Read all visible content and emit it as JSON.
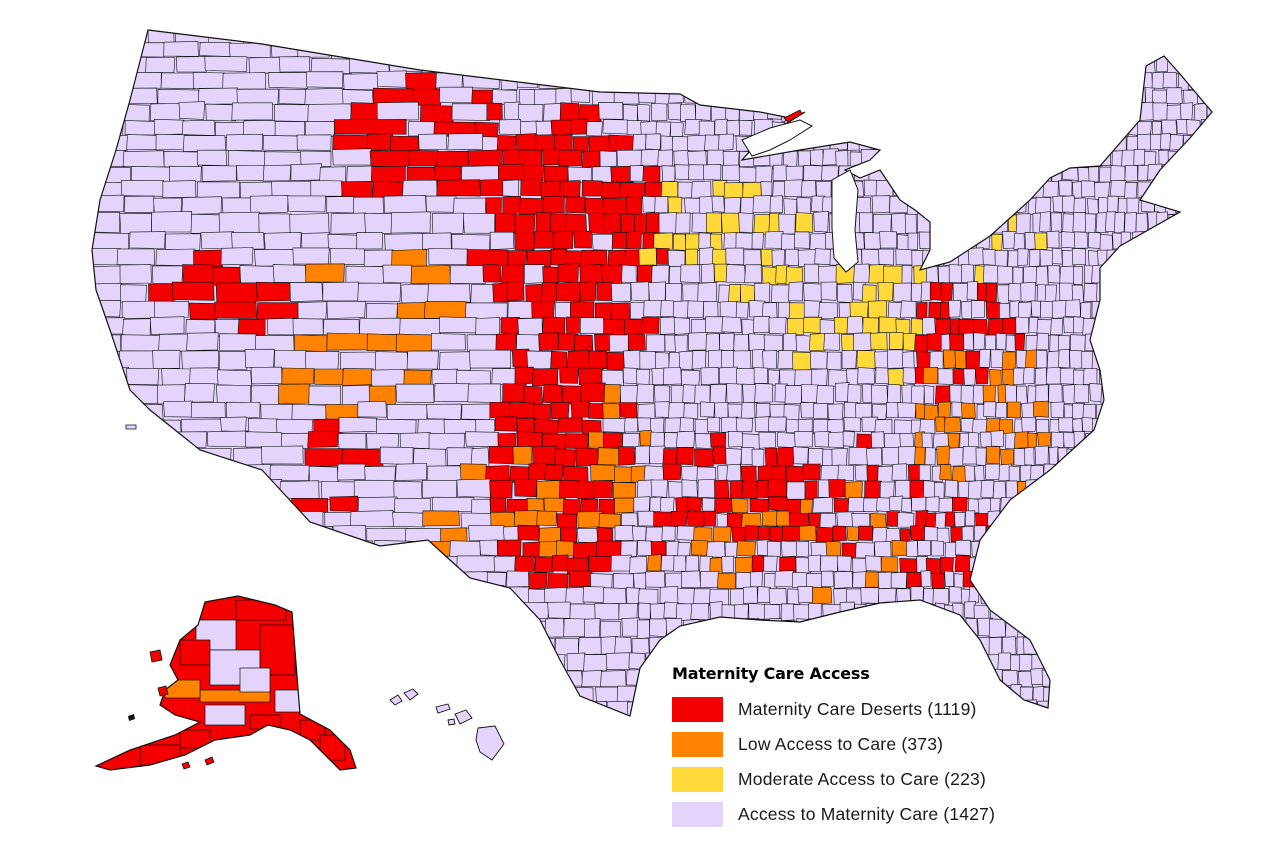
{
  "legend": {
    "title": "Maternity Care Access",
    "items": [
      {
        "label": "Maternity Care Deserts (1119)",
        "color": "#f40000",
        "category": "desert",
        "count": 1119
      },
      {
        "label": "Low Access to Care (373)",
        "color": "#ff8200",
        "category": "low",
        "count": 373
      },
      {
        "label": "Moderate Access to Care (223)",
        "color": "#ffd83a",
        "category": "moderate",
        "count": 223
      },
      {
        "label": "Access to Maternity Care (1427)",
        "color": "#e4d4fb",
        "category": "access",
        "count": 1427
      }
    ]
  },
  "map": {
    "type": "choropleth",
    "unit": "county",
    "regions": [
      "Contiguous United States",
      "Alaska",
      "Hawaii"
    ],
    "border_color": "#111111"
  }
}
